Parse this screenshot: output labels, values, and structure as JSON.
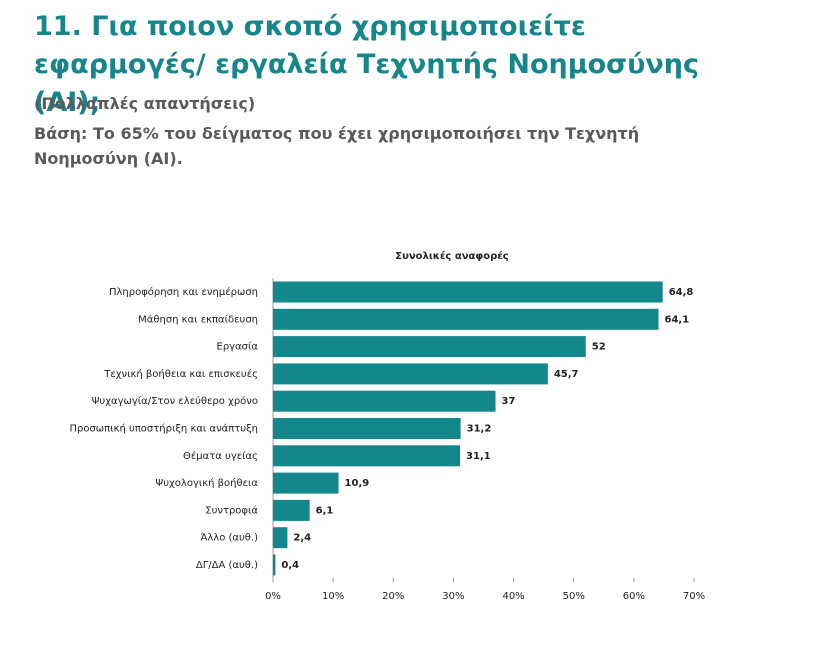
{
  "chart_data": {
    "type": "hbar",
    "title": "11. Για ποιον σκοπό χρησιμοποιείτε εφαρμογές/ εργαλεία Τεχνητής Νοημοσύνης (AI);",
    "subtitle": "(Πολλαπλές απαντήσεις)",
    "note": "Βάση: Το 65% του δείγματος που έχει χρησιμοποιήσει την Τεχνητή Νοημοσύνη (AI).",
    "chart_title": "Συνολικές αναφορές",
    "categories": [
      "Πληροφόρηση και ενημέρωση",
      "Μάθηση και εκπαίδευση",
      "Εργασία",
      "Τεχνική βοήθεια και επισκευές",
      "Ψυχαγωγία/Στον ελεύθερο χρόνο",
      "Προσωπική υποστήριξη και ανάπτυξη",
      "Θέματα υγείας",
      "Ψυχολογική βοήθεια",
      "Συντροφιά",
      "Άλλο (αυθ.)",
      "ΔΓ/ΔΑ (αυθ.)"
    ],
    "values": [
      64.8,
      64.1,
      52,
      45.7,
      37,
      31.2,
      31.1,
      10.9,
      6.1,
      2.4,
      0.4
    ],
    "value_labels": [
      "64,8",
      "64,1",
      "52",
      "45,7",
      "37",
      "31,2",
      "31,1",
      "10,9",
      "6,1",
      "2,4",
      "0,4"
    ],
    "color": "#12888d",
    "xlim": [
      0,
      70
    ],
    "xticks": [
      {
        "value": 0,
        "label": "0%"
      },
      {
        "value": 10,
        "label": "10%"
      },
      {
        "value": 20,
        "label": "20%"
      },
      {
        "value": 30,
        "label": "30%"
      },
      {
        "value": 40,
        "label": "40%"
      },
      {
        "value": 50,
        "label": "50%"
      },
      {
        "value": 60,
        "label": "60%"
      },
      {
        "value": 70,
        "label": "70%"
      }
    ],
    "grid": false
  }
}
